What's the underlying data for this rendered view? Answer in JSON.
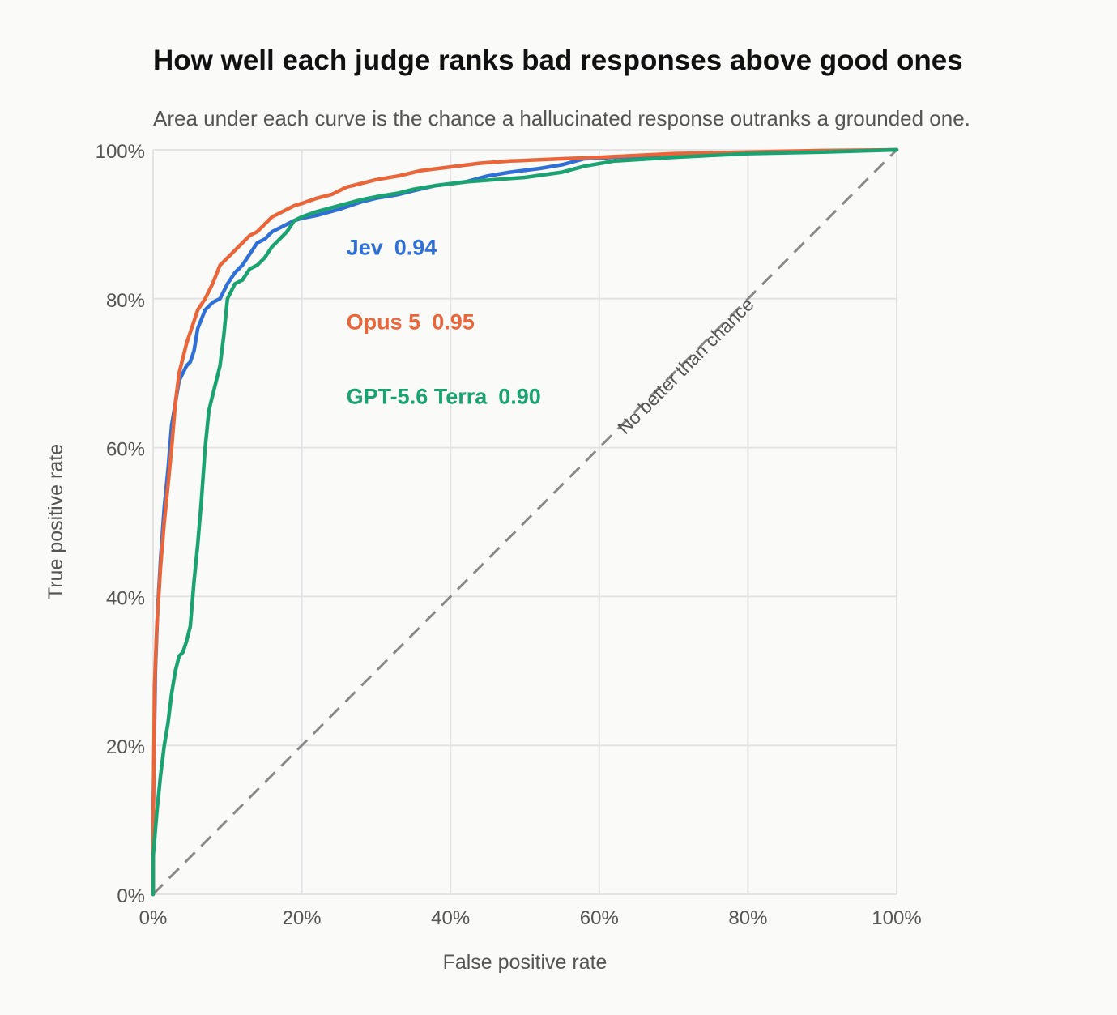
{
  "chart_data": {
    "type": "line",
    "title": "How well each judge ranks bad responses above good ones",
    "subtitle": "Area under each curve is the chance a hallucinated response outranks a grounded one.",
    "xlabel": "False positive rate",
    "ylabel": "True positive rate",
    "xlim": [
      0,
      1
    ],
    "ylim": [
      0,
      1
    ],
    "x_ticks": [
      0,
      0.2,
      0.4,
      0.6,
      0.8,
      1.0
    ],
    "x_tick_labels": [
      "0%",
      "20%",
      "40%",
      "60%",
      "80%",
      "100%"
    ],
    "y_ticks": [
      0,
      0.2,
      0.4,
      0.6,
      0.8,
      1.0
    ],
    "y_tick_labels": [
      "0%",
      "20%",
      "40%",
      "60%",
      "80%",
      "100%"
    ],
    "grid": true,
    "reference_line": {
      "label": "No better than chance",
      "points": [
        [
          0,
          0
        ],
        [
          1,
          1
        ]
      ],
      "color": "#888888"
    },
    "series": [
      {
        "name": "Jev",
        "auc_label": "0.94",
        "color": "#2f6fd6",
        "points": [
          [
            0,
            0
          ],
          [
            0,
            0.1
          ],
          [
            0.003,
            0.3
          ],
          [
            0.006,
            0.38
          ],
          [
            0.01,
            0.45
          ],
          [
            0.015,
            0.52
          ],
          [
            0.02,
            0.57
          ],
          [
            0.025,
            0.63
          ],
          [
            0.03,
            0.66
          ],
          [
            0.035,
            0.69
          ],
          [
            0.04,
            0.7
          ],
          [
            0.045,
            0.71
          ],
          [
            0.05,
            0.715
          ],
          [
            0.055,
            0.73
          ],
          [
            0.06,
            0.76
          ],
          [
            0.07,
            0.785
          ],
          [
            0.08,
            0.795
          ],
          [
            0.09,
            0.8
          ],
          [
            0.1,
            0.82
          ],
          [
            0.11,
            0.835
          ],
          [
            0.12,
            0.845
          ],
          [
            0.13,
            0.86
          ],
          [
            0.14,
            0.875
          ],
          [
            0.15,
            0.88
          ],
          [
            0.16,
            0.89
          ],
          [
            0.17,
            0.895
          ],
          [
            0.18,
            0.9
          ],
          [
            0.19,
            0.905
          ],
          [
            0.2,
            0.908
          ],
          [
            0.22,
            0.912
          ],
          [
            0.25,
            0.92
          ],
          [
            0.28,
            0.93
          ],
          [
            0.3,
            0.935
          ],
          [
            0.33,
            0.94
          ],
          [
            0.35,
            0.945
          ],
          [
            0.38,
            0.952
          ],
          [
            0.42,
            0.957
          ],
          [
            0.45,
            0.965
          ],
          [
            0.48,
            0.97
          ],
          [
            0.52,
            0.975
          ],
          [
            0.55,
            0.98
          ],
          [
            0.58,
            0.988
          ],
          [
            0.62,
            0.99
          ],
          [
            0.7,
            0.993
          ],
          [
            0.8,
            0.996
          ],
          [
            0.9,
            0.998
          ],
          [
            1.0,
            1.0
          ]
        ]
      },
      {
        "name": "Opus 5",
        "auc_label": "0.95",
        "color": "#e8663a",
        "points": [
          [
            0,
            0
          ],
          [
            0,
            0.08
          ],
          [
            0.002,
            0.28
          ],
          [
            0.005,
            0.36
          ],
          [
            0.01,
            0.44
          ],
          [
            0.015,
            0.5
          ],
          [
            0.02,
            0.55
          ],
          [
            0.025,
            0.6
          ],
          [
            0.03,
            0.66
          ],
          [
            0.035,
            0.7
          ],
          [
            0.04,
            0.72
          ],
          [
            0.045,
            0.74
          ],
          [
            0.05,
            0.755
          ],
          [
            0.055,
            0.77
          ],
          [
            0.06,
            0.785
          ],
          [
            0.07,
            0.8
          ],
          [
            0.08,
            0.82
          ],
          [
            0.09,
            0.845
          ],
          [
            0.1,
            0.855
          ],
          [
            0.11,
            0.865
          ],
          [
            0.12,
            0.875
          ],
          [
            0.13,
            0.885
          ],
          [
            0.14,
            0.89
          ],
          [
            0.15,
            0.9
          ],
          [
            0.16,
            0.91
          ],
          [
            0.17,
            0.915
          ],
          [
            0.18,
            0.92
          ],
          [
            0.19,
            0.925
          ],
          [
            0.2,
            0.928
          ],
          [
            0.22,
            0.935
          ],
          [
            0.24,
            0.94
          ],
          [
            0.26,
            0.95
          ],
          [
            0.28,
            0.955
          ],
          [
            0.3,
            0.96
          ],
          [
            0.33,
            0.965
          ],
          [
            0.36,
            0.972
          ],
          [
            0.4,
            0.977
          ],
          [
            0.44,
            0.982
          ],
          [
            0.48,
            0.985
          ],
          [
            0.55,
            0.988
          ],
          [
            0.6,
            0.99
          ],
          [
            0.7,
            0.995
          ],
          [
            0.8,
            0.997
          ],
          [
            0.9,
            0.999
          ],
          [
            1.0,
            1.0
          ]
        ]
      },
      {
        "name": "GPT-5.6 Terra",
        "auc_label": "0.90",
        "color": "#1aa371",
        "points": [
          [
            0,
            0
          ],
          [
            0,
            0.05
          ],
          [
            0.005,
            0.11
          ],
          [
            0.01,
            0.16
          ],
          [
            0.015,
            0.2
          ],
          [
            0.02,
            0.23
          ],
          [
            0.025,
            0.27
          ],
          [
            0.03,
            0.3
          ],
          [
            0.035,
            0.32
          ],
          [
            0.04,
            0.325
          ],
          [
            0.045,
            0.34
          ],
          [
            0.05,
            0.36
          ],
          [
            0.055,
            0.42
          ],
          [
            0.06,
            0.47
          ],
          [
            0.065,
            0.53
          ],
          [
            0.07,
            0.6
          ],
          [
            0.075,
            0.65
          ],
          [
            0.08,
            0.67
          ],
          [
            0.085,
            0.69
          ],
          [
            0.09,
            0.71
          ],
          [
            0.095,
            0.75
          ],
          [
            0.1,
            0.8
          ],
          [
            0.105,
            0.81
          ],
          [
            0.11,
            0.82
          ],
          [
            0.12,
            0.825
          ],
          [
            0.13,
            0.84
          ],
          [
            0.14,
            0.845
          ],
          [
            0.15,
            0.855
          ],
          [
            0.16,
            0.87
          ],
          [
            0.17,
            0.88
          ],
          [
            0.18,
            0.89
          ],
          [
            0.19,
            0.905
          ],
          [
            0.2,
            0.91
          ],
          [
            0.22,
            0.917
          ],
          [
            0.25,
            0.925
          ],
          [
            0.28,
            0.933
          ],
          [
            0.3,
            0.937
          ],
          [
            0.33,
            0.942
          ],
          [
            0.35,
            0.947
          ],
          [
            0.38,
            0.952
          ],
          [
            0.42,
            0.957
          ],
          [
            0.46,
            0.96
          ],
          [
            0.5,
            0.963
          ],
          [
            0.55,
            0.97
          ],
          [
            0.58,
            0.978
          ],
          [
            0.62,
            0.985
          ],
          [
            0.7,
            0.99
          ],
          [
            0.8,
            0.995
          ],
          [
            0.9,
            0.997
          ],
          [
            1.0,
            1.0
          ]
        ]
      }
    ]
  }
}
